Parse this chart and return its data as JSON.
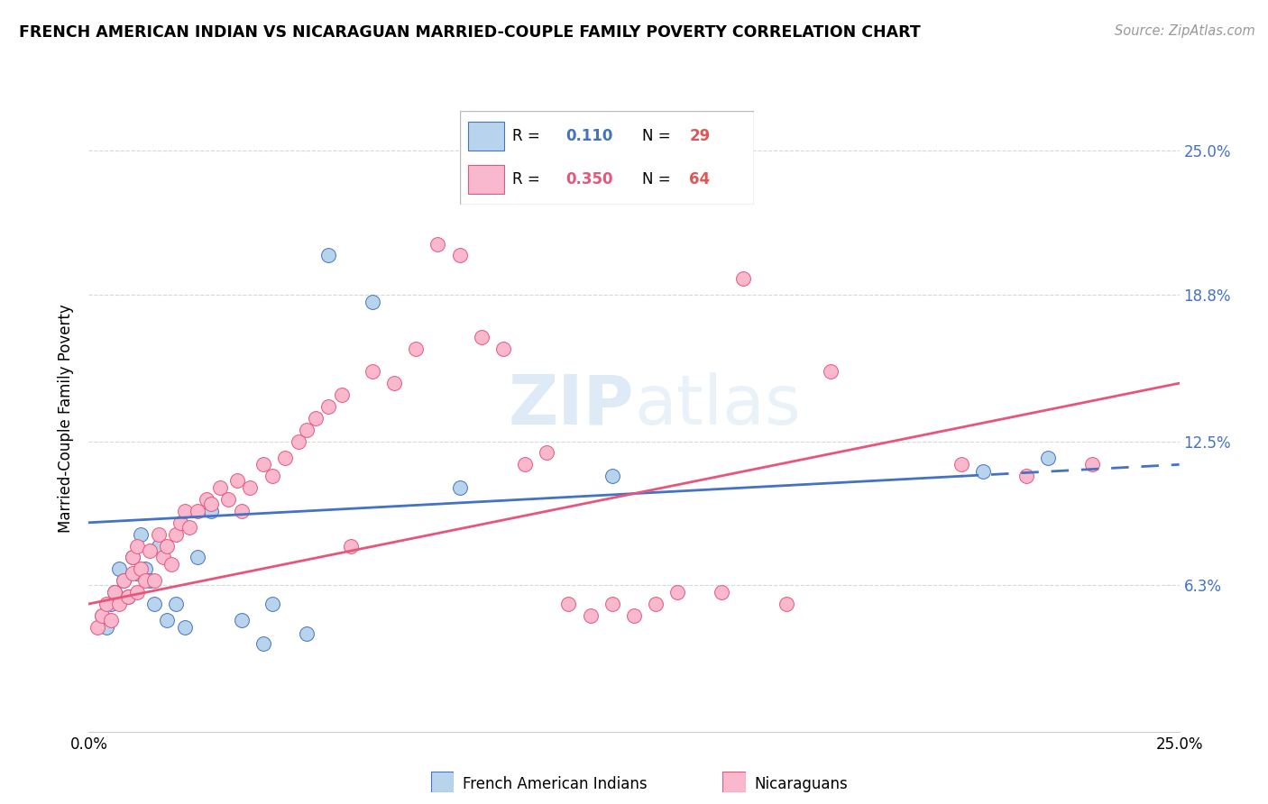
{
  "title": "FRENCH AMERICAN INDIAN VS NICARAGUAN MARRIED-COUPLE FAMILY POVERTY CORRELATION CHART",
  "source": "Source: ZipAtlas.com",
  "ylabel": "Married-Couple Family Poverty",
  "xlim": [
    0,
    25
  ],
  "ylim": [
    0,
    27
  ],
  "yticks": [
    6.3,
    12.5,
    18.8,
    25.0
  ],
  "xticks": [
    0,
    5,
    10,
    15,
    20,
    25
  ],
  "ytick_labels_right": [
    "6.3%",
    "12.5%",
    "18.8%",
    "25.0%"
  ],
  "label1": "French American Indians",
  "label2": "Nicaraguans",
  "color1": "#b8d4ed",
  "color2": "#f9b8cd",
  "trendline1_color": "#4472c4",
  "trendline2_color": "#e8557a",
  "background_color": "#ffffff",
  "grid_color": "#d8d8d8",
  "blue_scatter": [
    [
      0.3,
      5.0
    ],
    [
      0.4,
      4.5
    ],
    [
      0.5,
      5.5
    ],
    [
      0.6,
      6.0
    ],
    [
      0.7,
      7.0
    ],
    [
      0.8,
      6.5
    ],
    [
      0.9,
      5.8
    ],
    [
      1.0,
      7.5
    ],
    [
      1.1,
      6.8
    ],
    [
      1.2,
      8.5
    ],
    [
      1.3,
      7.0
    ],
    [
      1.4,
      6.5
    ],
    [
      1.5,
      5.5
    ],
    [
      1.6,
      8.0
    ],
    [
      1.8,
      4.8
    ],
    [
      2.0,
      5.5
    ],
    [
      2.2,
      4.5
    ],
    [
      2.5,
      7.5
    ],
    [
      2.8,
      9.5
    ],
    [
      3.5,
      4.8
    ],
    [
      4.0,
      3.8
    ],
    [
      4.2,
      5.5
    ],
    [
      5.0,
      4.2
    ],
    [
      5.5,
      20.5
    ],
    [
      6.5,
      18.5
    ],
    [
      8.5,
      10.5
    ],
    [
      12.0,
      11.0
    ],
    [
      20.5,
      11.2
    ],
    [
      22.0,
      11.8
    ]
  ],
  "pink_scatter": [
    [
      0.2,
      4.5
    ],
    [
      0.3,
      5.0
    ],
    [
      0.4,
      5.5
    ],
    [
      0.5,
      4.8
    ],
    [
      0.6,
      6.0
    ],
    [
      0.7,
      5.5
    ],
    [
      0.8,
      6.5
    ],
    [
      0.9,
      5.8
    ],
    [
      1.0,
      6.8
    ],
    [
      1.0,
      7.5
    ],
    [
      1.1,
      6.0
    ],
    [
      1.1,
      8.0
    ],
    [
      1.2,
      7.0
    ],
    [
      1.3,
      6.5
    ],
    [
      1.4,
      7.8
    ],
    [
      1.5,
      6.5
    ],
    [
      1.6,
      8.5
    ],
    [
      1.7,
      7.5
    ],
    [
      1.8,
      8.0
    ],
    [
      1.9,
      7.2
    ],
    [
      2.0,
      8.5
    ],
    [
      2.1,
      9.0
    ],
    [
      2.2,
      9.5
    ],
    [
      2.3,
      8.8
    ],
    [
      2.5,
      9.5
    ],
    [
      2.7,
      10.0
    ],
    [
      2.8,
      9.8
    ],
    [
      3.0,
      10.5
    ],
    [
      3.2,
      10.0
    ],
    [
      3.4,
      10.8
    ],
    [
      3.5,
      9.5
    ],
    [
      3.7,
      10.5
    ],
    [
      4.0,
      11.5
    ],
    [
      4.2,
      11.0
    ],
    [
      4.5,
      11.8
    ],
    [
      4.8,
      12.5
    ],
    [
      5.0,
      13.0
    ],
    [
      5.2,
      13.5
    ],
    [
      5.5,
      14.0
    ],
    [
      5.8,
      14.5
    ],
    [
      6.0,
      8.0
    ],
    [
      6.5,
      15.5
    ],
    [
      7.0,
      15.0
    ],
    [
      7.5,
      16.5
    ],
    [
      8.0,
      21.0
    ],
    [
      8.5,
      20.5
    ],
    [
      9.0,
      17.0
    ],
    [
      9.5,
      16.5
    ],
    [
      10.0,
      11.5
    ],
    [
      10.5,
      12.0
    ],
    [
      11.0,
      5.5
    ],
    [
      11.5,
      5.0
    ],
    [
      12.0,
      5.5
    ],
    [
      12.5,
      5.0
    ],
    [
      13.0,
      5.5
    ],
    [
      13.5,
      6.0
    ],
    [
      14.5,
      6.0
    ],
    [
      15.0,
      19.5
    ],
    [
      16.0,
      5.5
    ],
    [
      17.0,
      15.5
    ],
    [
      20.0,
      11.5
    ],
    [
      21.5,
      11.0
    ],
    [
      23.0,
      11.5
    ]
  ],
  "trendline1_x": [
    0,
    25
  ],
  "trendline1_y": [
    9.0,
    11.5
  ],
  "trendline1_solid_end": 20.0,
  "trendline2_x": [
    0,
    25
  ],
  "trendline2_y": [
    5.5,
    15.0
  ]
}
